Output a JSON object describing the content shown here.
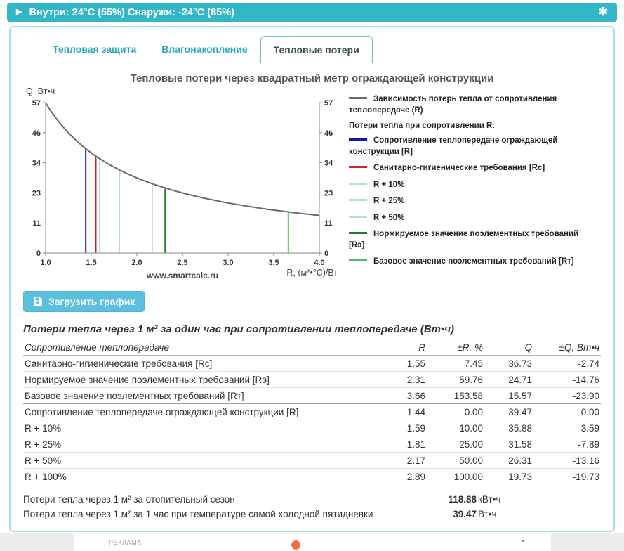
{
  "topbar": {
    "status_text": "Внутри: 24°C (55%) Снаружи: -24°C (85%)",
    "expand_icon": "▶",
    "snowflake_icon": "✱"
  },
  "tabs": [
    {
      "label": "Тепловая защита",
      "active": false
    },
    {
      "label": "Влагонакопление",
      "active": false
    },
    {
      "label": "Тепловые потери",
      "active": true
    }
  ],
  "buttons": {
    "download_chart": "Загрузить график"
  },
  "chart_data": {
    "type": "line",
    "title": "Тепловые потери через квадратный метр ограждающей конструкции",
    "ylabel": "Q, Вт•ч",
    "xlabel": "R, (м²•°C)/Вт",
    "watermark": "www.smartcalc.ru",
    "xlim": [
      1.0,
      4.0
    ],
    "ylim": [
      0,
      57
    ],
    "x_ticks": [
      "1.0",
      "1.5",
      "2.0",
      "2.5",
      "3.0",
      "3.5",
      "4.0"
    ],
    "y_ticks": [
      {
        "v": 0,
        "label": "0"
      },
      {
        "v": 11.4,
        "label": "11"
      },
      {
        "v": 22.8,
        "label": "23"
      },
      {
        "v": 34.2,
        "label": "34"
      },
      {
        "v": 45.6,
        "label": "46"
      },
      {
        "v": 57,
        "label": "57"
      }
    ],
    "grid": false,
    "legend_position": "right",
    "curve": {
      "name": "Зависимость потерь тепла от сопротивления теплопередаче (R)",
      "color": "#6b6b6b",
      "formula": "Q = 56.95 / R",
      "q0": 56.95
    },
    "legend_header": "Потери тепла при сопротивлении R:",
    "markers": [
      {
        "r": 1.44,
        "q": 39.47,
        "color": "#1616ad",
        "width": 2,
        "label": "Сопротивление теплопередаче ограждающей конструкции [R]"
      },
      {
        "r": 1.55,
        "q": 36.73,
        "color": "#c62828",
        "width": 2,
        "label": "Санитарно-гигиенические требования [Rc]"
      },
      {
        "r": 1.59,
        "q": 35.88,
        "color": "#b5dce3",
        "width": 1.5,
        "label": "R + 10%"
      },
      {
        "r": 1.81,
        "q": 31.58,
        "color": "#b5dce3",
        "width": 1.5,
        "label": "R + 25%"
      },
      {
        "r": 2.17,
        "q": 26.31,
        "color": "#b5dce3",
        "width": 1.5,
        "label": "R + 50%"
      },
      {
        "r": 2.31,
        "q": 24.71,
        "color": "#1f7d1f",
        "width": 2,
        "label": "Нормируемое значение поэлементных требований [Rэ]"
      },
      {
        "r": 3.66,
        "q": 15.57,
        "color": "#57bb57",
        "width": 2,
        "label": "Базовое значение поэлементных требований [Rт]"
      }
    ]
  },
  "table": {
    "title": "Потери тепла через 1 м² за один час при сопротивлении теплопередаче (Вт•ч)",
    "header": {
      "label": "Сопротивление теплопередаче",
      "cols": [
        "R",
        "±R, %",
        "Q",
        "±Q, Вт•ч"
      ]
    },
    "groups": [
      [
        {
          "label": "Санитарно-гигиенические требования [Rc]",
          "r": "1.55",
          "dr": "7.45",
          "q": "36.73",
          "dq": "-2.74"
        },
        {
          "label": "Нормируемое значение поэлементных требований [Rэ]",
          "r": "2.31",
          "dr": "59.76",
          "q": "24.71",
          "dq": "-14.76"
        },
        {
          "label": "Базовое значение поэлементных требований [Rт]",
          "r": "3.66",
          "dr": "153.58",
          "q": "15.57",
          "dq": "-23.90"
        }
      ],
      [
        {
          "label": "Сопротивление теплопередаче ограждающей конструкции [R]",
          "r": "1.44",
          "dr": "0.00",
          "q": "39.47",
          "dq": "0.00"
        },
        {
          "label": "R + 10%",
          "r": "1.59",
          "dr": "10.00",
          "q": "35.88",
          "dq": "-3.59"
        },
        {
          "label": "R + 25%",
          "r": "1.81",
          "dr": "25.00",
          "q": "31.58",
          "dq": "-7.89"
        },
        {
          "label": "R + 50%",
          "r": "2.17",
          "dr": "50.00",
          "q": "26.31",
          "dq": "-13.16"
        },
        {
          "label": "R + 100%",
          "r": "2.89",
          "dr": "100.00",
          "q": "19.73",
          "dq": "-19.73"
        }
      ]
    ],
    "summary": [
      {
        "label": "Потери тепла через 1 м² за отопительный сезон",
        "value": "118.88",
        "unit": "кВт•ч"
      },
      {
        "label": "Потери тепла через 1 м² за 1 час при температуре самой холодной пятидневки",
        "value": "39.47",
        "unit": "Вт•ч"
      }
    ]
  },
  "ad": {
    "label": "РЕКЛАМА"
  },
  "colors": {
    "accent_teal": "#31b7c5",
    "tab_text": "#2aa9ba",
    "card_border": "#a5dbe4",
    "button_bg": "#5bc0de",
    "curve_gray": "#6b6b6b"
  }
}
